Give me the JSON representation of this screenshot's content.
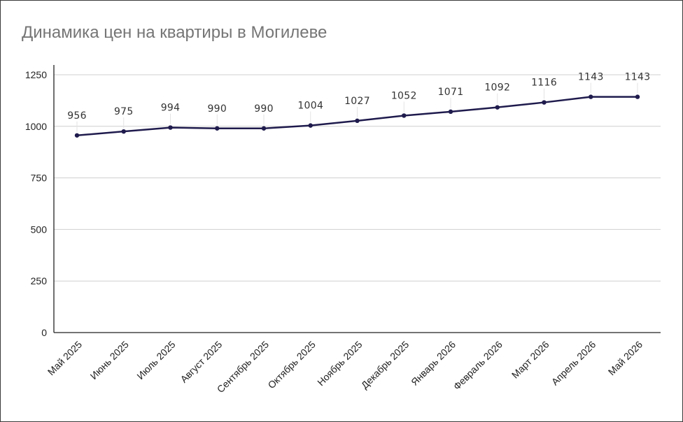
{
  "chart_data": {
    "type": "line",
    "title": "Динамика цен на квартиры в Могилеве",
    "xlabel": "",
    "ylabel": "",
    "categories": [
      "Май 2025",
      "Июнь 2025",
      "Июль 2025",
      "Август 2025",
      "Сентябрь 2025",
      "Октябрь 2025",
      "Ноябрь 2025",
      "Декабрь 2025",
      "Январь 2026",
      "Февраль 2026",
      "Март 2026",
      "Апрель 2026",
      "Май 2026"
    ],
    "series": [
      {
        "values": [
          956,
          975,
          994,
          990,
          990,
          1004,
          1027,
          1052,
          1071,
          1092,
          1116,
          1143,
          1143
        ],
        "color": "#1f1b4d"
      }
    ],
    "ylim": [
      0,
      1250
    ],
    "yticks": [
      0,
      250,
      500,
      750,
      1000,
      1250
    ],
    "grid": true,
    "legend": "none",
    "data_labels": true
  }
}
